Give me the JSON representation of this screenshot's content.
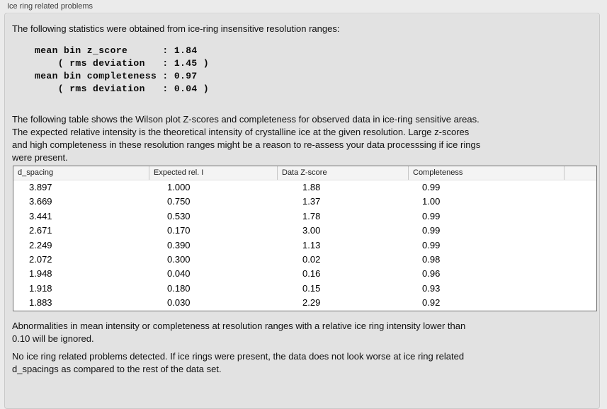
{
  "panel": {
    "title": "Ice ring related problems",
    "intro": "The following statistics were obtained from ice-ring insensitive resolution ranges:",
    "stats_text": "mean bin z_score      : 1.84\n    ( rms deviation   : 1.45 )\nmean bin completeness : 0.97\n    ( rms deviation   : 0.04 )",
    "stats": {
      "mean_bin_z_score": "1.84",
      "z_score_rms_deviation": "1.45",
      "mean_bin_completeness": "0.97",
      "completeness_rms_deviation": "0.04"
    },
    "table_description": "The following table shows the Wilson plot Z-scores and completeness for observed data in ice-ring sensitive areas.\nThe expected relative intensity is the theoretical intensity of crystalline ice at the given resolution. Large z-scores\nand high completeness in these resolution ranges might be a reason to re-assess your data processsing if ice rings\nwere present.",
    "table": {
      "columns": [
        "d_spacing",
        "Expected rel. I",
        "Data Z-score",
        "Completeness"
      ],
      "rows": [
        [
          "3.897",
          "1.000",
          "1.88",
          "0.99"
        ],
        [
          "3.669",
          "0.750",
          "1.37",
          "1.00"
        ],
        [
          "3.441",
          "0.530",
          "1.78",
          "0.99"
        ],
        [
          "2.671",
          "0.170",
          "3.00",
          "0.99"
        ],
        [
          "2.249",
          "0.390",
          "1.13",
          "0.99"
        ],
        [
          "2.072",
          "0.300",
          "0.02",
          "0.98"
        ],
        [
          "1.948",
          "0.040",
          "0.16",
          "0.96"
        ],
        [
          "1.918",
          "0.180",
          "0.15",
          "0.93"
        ],
        [
          "1.883",
          "0.030",
          "2.29",
          "0.92"
        ]
      ]
    },
    "ignore_note": "Abnormalities in mean intensity or completeness at resolution ranges with a relative ice ring intensity lower than\n0.10 will be ignored.",
    "conclusion": "No ice ring related problems detected. If ice rings were present, the data does not look worse at ice ring related\nd_spacings as compared to the rest of the data set."
  }
}
